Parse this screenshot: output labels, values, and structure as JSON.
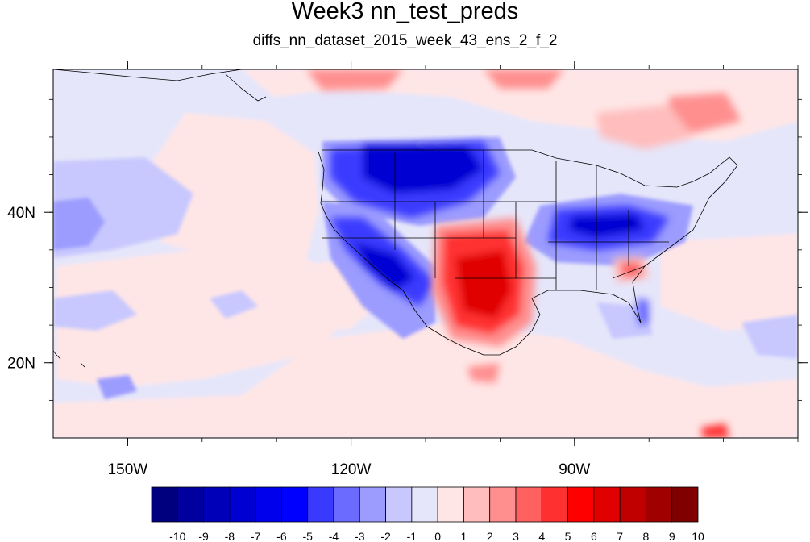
{
  "title": "Week3 nn_test_preds",
  "subtitle": "diffs_nn_dataset_2015_week_43_ens_2_f_2",
  "map": {
    "lon_range": [
      -160,
      -60
    ],
    "lat_range": [
      10,
      59
    ],
    "lon_ticks": [
      {
        "value": -150,
        "label": "150W"
      },
      {
        "value": -120,
        "label": "120W"
      },
      {
        "value": -90,
        "label": "90W"
      }
    ],
    "lat_ticks": [
      {
        "value": 40,
        "label": "40N"
      },
      {
        "value": 20,
        "label": "20N"
      }
    ]
  },
  "colorbar": {
    "labels": [
      "-10",
      "-9",
      "-8",
      "-7",
      "-6",
      "-5",
      "-4",
      "-3",
      "-2",
      "-1",
      "0",
      "1",
      "2",
      "3",
      "4",
      "5",
      "6",
      "7",
      "8",
      "9",
      "10"
    ],
    "colors": [
      "#00007f",
      "#00009e",
      "#0000b8",
      "#0000d2",
      "#0000ec",
      "#0000ff",
      "#3a3aff",
      "#6b6bff",
      "#9c9cff",
      "#c8c8ff",
      "#e6e6fa",
      "#ffe6e6",
      "#ffbdbd",
      "#ff8f8f",
      "#ff6060",
      "#ff3030",
      "#ff0000",
      "#e00000",
      "#c00000",
      "#a00000",
      "#800000"
    ]
  },
  "field_colors": {
    "background_light_blue": "#e6e6fa",
    "light_pink": "#ffe6e6"
  }
}
